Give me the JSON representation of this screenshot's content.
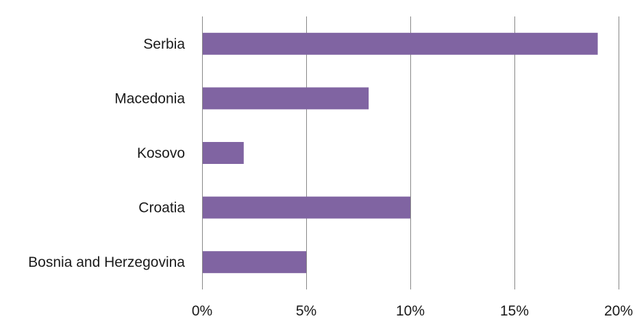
{
  "chart_data": {
    "type": "bar",
    "orientation": "horizontal",
    "categories": [
      "Serbia",
      "Macedonia",
      "Kosovo",
      "Croatia",
      "Bosnia and Herzegovina"
    ],
    "values": [
      19,
      8,
      2,
      10,
      5
    ],
    "value_unit": "%",
    "title": "",
    "xlabel": "",
    "ylabel": "",
    "xlim": [
      0,
      20
    ],
    "x_ticks": [
      0,
      5,
      10,
      15,
      20
    ],
    "x_tick_labels": [
      "0%",
      "5%",
      "10%",
      "15%",
      "20%"
    ],
    "grid": "vertical",
    "legend": "none",
    "bar_color": "#8064a2"
  }
}
